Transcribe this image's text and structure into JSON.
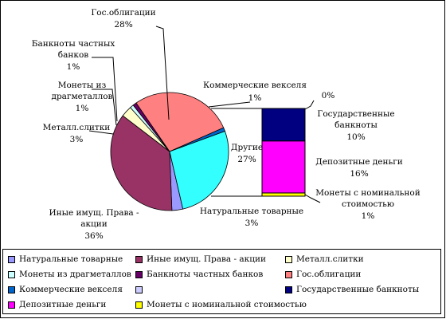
{
  "chart_data": {
    "type": "bar-of-pie",
    "slices": [
      {
        "name": "Натуральные товарные",
        "value": 3,
        "pct": "3%",
        "color": "#9999ff"
      },
      {
        "name": "Иные имущ. Права - акции",
        "value": 36,
        "pct": "36%",
        "color": "#993366"
      },
      {
        "name": "Металл.слитки",
        "value": 3,
        "pct": "3%",
        "color": "#ffffcc"
      },
      {
        "name": "Монеты из драгметаллов",
        "value": 1,
        "pct": "1%",
        "color": "#ccffff"
      },
      {
        "name": "Банкноты частных банков",
        "value": 1,
        "pct": "1%",
        "color": "#660066"
      },
      {
        "name": "Гос.облигации",
        "value": 28,
        "pct": "28%",
        "color": "#ff8080"
      },
      {
        "name": "Коммерческие векселя",
        "value": 1,
        "pct": "1%",
        "color": "#0066cc"
      },
      {
        "name": "Другие",
        "value": 27,
        "pct": "27%",
        "color": "#33ffff"
      }
    ],
    "bar": [
      {
        "name": "Монеты с номинальной стоимостью",
        "value": 1,
        "pct": "1%",
        "color": "#ffff00"
      },
      {
        "name": "Депозитные деньги",
        "value": 16,
        "pct": "16%",
        "color": "#ff00ff"
      },
      {
        "name": "Государственные банкноты",
        "value": 10,
        "pct": "10%",
        "color": "#000080"
      },
      {
        "name": "",
        "value": 0,
        "pct": "0%",
        "color": "#ccccff"
      }
    ],
    "legend_position": "bottom"
  },
  "labels": {
    "natural": {
      "name": "Натуральные товарные",
      "pct": "3%"
    },
    "stocks": {
      "line1": "Иные имущ. Права -",
      "line2": "акции",
      "pct": "36%"
    },
    "metal": {
      "name": "Металл.слитки",
      "pct": "3%"
    },
    "coins": {
      "line1": "Монеты из",
      "line2": "драгметаллов",
      "pct": "1%"
    },
    "private": {
      "line1": "Банкноты частных",
      "line2": "банков",
      "pct": "1%"
    },
    "gov_bonds": {
      "name": "Гос.облигации",
      "pct": "28%"
    },
    "commercial": {
      "name": "Коммерческие векселя",
      "pct": "1%"
    },
    "other": {
      "name": "Другие",
      "pct": "27%"
    },
    "zero": {
      "pct": "0%"
    },
    "gov_notes": {
      "line1": "Государственные",
      "line2": "банкноты",
      "pct": "10%"
    },
    "deposit": {
      "name": "Депозитные деньги",
      "pct": "16%"
    },
    "nominal": {
      "line1": "Монеты с номинальной",
      "line2": "стоимостью",
      "pct": "1%"
    }
  },
  "legend": [
    {
      "label": "Натуральные товарные",
      "color": "#9999ff"
    },
    {
      "label": "Иные имущ. Права - акции",
      "color": "#993366"
    },
    {
      "label": "Металл.слитки",
      "color": "#ffffcc"
    },
    {
      "label": "Монеты из драгметаллов",
      "color": "#ccffff"
    },
    {
      "label": "Банкноты частных банков",
      "color": "#660066"
    },
    {
      "label": "Гос.облигации",
      "color": "#ff8080"
    },
    {
      "label": "Коммерческие векселя",
      "color": "#0066cc"
    },
    {
      "label": "",
      "color": "#ccccff"
    },
    {
      "label": "Государственные банкноты",
      "color": "#000080"
    },
    {
      "label": "Депозитные деньги",
      "color": "#ff00ff"
    },
    {
      "label": "Монеты с номинальной стоимостью",
      "color": "#ffff00"
    }
  ]
}
